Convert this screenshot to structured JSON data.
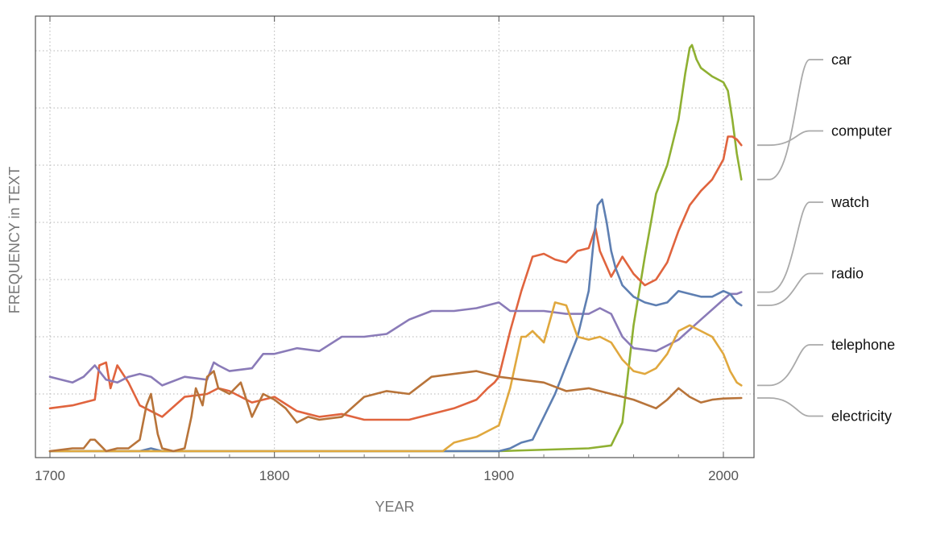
{
  "chart_data": {
    "type": "line",
    "xlabel": "YEAR",
    "ylabel": "FREQUENCY in TEXT",
    "xlim": [
      1700,
      2012
    ],
    "ylim": [
      0,
      7.2
    ],
    "x_ticks": [
      1700,
      1800,
      1900,
      2000
    ],
    "x_tick_labels": [
      "1700",
      "1800",
      "1900",
      "2000"
    ],
    "y_tick_labels_shown": false,
    "grid": true,
    "legend_placement": "right",
    "series": [
      {
        "name": "car",
        "color": "#8fb032",
        "x": [
          1700,
          1750,
          1800,
          1850,
          1900,
          1940,
          1950,
          1955,
          1960,
          1965,
          1970,
          1975,
          1980,
          1983,
          1985,
          1986,
          1988,
          1990,
          1995,
          2000,
          2002,
          2004,
          2006,
          2008
        ],
        "y": [
          0.0,
          0.0,
          0.0,
          0.0,
          0.0,
          0.05,
          0.1,
          0.5,
          2.2,
          3.4,
          4.5,
          5.0,
          5.8,
          6.6,
          7.05,
          7.1,
          6.85,
          6.7,
          6.55,
          6.45,
          6.3,
          5.8,
          5.2,
          4.75
        ]
      },
      {
        "name": "computer",
        "color": "#e0643e",
        "x": [
          1700,
          1710,
          1720,
          1722,
          1725,
          1727,
          1730,
          1735,
          1740,
          1745,
          1750,
          1760,
          1770,
          1775,
          1780,
          1790,
          1800,
          1810,
          1820,
          1830,
          1840,
          1850,
          1860,
          1870,
          1880,
          1890,
          1895,
          1898,
          1900,
          1905,
          1910,
          1915,
          1920,
          1925,
          1930,
          1935,
          1940,
          1943,
          1945,
          1950,
          1955,
          1960,
          1965,
          1970,
          1975,
          1980,
          1985,
          1990,
          1995,
          2000,
          2002,
          2004,
          2006,
          2008
        ],
        "y": [
          0.75,
          0.8,
          0.9,
          1.5,
          1.55,
          1.1,
          1.5,
          1.2,
          0.8,
          0.7,
          0.6,
          0.95,
          1.0,
          1.1,
          1.05,
          0.85,
          0.95,
          0.7,
          0.6,
          0.65,
          0.55,
          0.55,
          0.55,
          0.65,
          0.75,
          0.9,
          1.1,
          1.2,
          1.3,
          2.1,
          2.8,
          3.4,
          3.45,
          3.35,
          3.3,
          3.5,
          3.55,
          3.9,
          3.5,
          3.05,
          3.4,
          3.1,
          2.9,
          3.0,
          3.3,
          3.85,
          4.3,
          4.55,
          4.75,
          5.1,
          5.5,
          5.5,
          5.45,
          5.35
        ]
      },
      {
        "name": "watch",
        "color": "#8a7bb8",
        "x": [
          1700,
          1705,
          1710,
          1715,
          1720,
          1725,
          1730,
          1735,
          1740,
          1745,
          1750,
          1760,
          1770,
          1773,
          1775,
          1780,
          1790,
          1795,
          1800,
          1810,
          1820,
          1830,
          1840,
          1850,
          1860,
          1870,
          1880,
          1890,
          1900,
          1905,
          1910,
          1920,
          1930,
          1940,
          1945,
          1950,
          1955,
          1960,
          1970,
          1980,
          1990,
          2000,
          2003,
          2006,
          2008
        ],
        "y": [
          1.3,
          1.25,
          1.2,
          1.3,
          1.5,
          1.25,
          1.2,
          1.3,
          1.35,
          1.3,
          1.15,
          1.3,
          1.25,
          1.55,
          1.5,
          1.4,
          1.45,
          1.7,
          1.7,
          1.8,
          1.75,
          2.0,
          2.0,
          2.05,
          2.3,
          2.45,
          2.45,
          2.5,
          2.6,
          2.45,
          2.45,
          2.45,
          2.4,
          2.4,
          2.5,
          2.4,
          2.0,
          1.8,
          1.75,
          1.95,
          2.3,
          2.65,
          2.75,
          2.75,
          2.78
        ]
      },
      {
        "name": "radio",
        "color": "#5e7fb2",
        "x": [
          1700,
          1740,
          1745,
          1750,
          1800,
          1850,
          1900,
          1905,
          1910,
          1915,
          1920,
          1925,
          1930,
          1935,
          1940,
          1942,
          1944,
          1946,
          1948,
          1950,
          1952,
          1955,
          1960,
          1965,
          1970,
          1975,
          1980,
          1985,
          1990,
          1995,
          2000,
          2003,
          2006,
          2008
        ],
        "y": [
          0.0,
          0.0,
          0.05,
          0.0,
          0.0,
          0.0,
          0.0,
          0.05,
          0.15,
          0.2,
          0.6,
          1.0,
          1.5,
          2.0,
          2.8,
          3.6,
          4.3,
          4.4,
          4.0,
          3.5,
          3.2,
          2.9,
          2.7,
          2.6,
          2.55,
          2.6,
          2.8,
          2.75,
          2.7,
          2.7,
          2.8,
          2.75,
          2.6,
          2.55
        ]
      },
      {
        "name": "telephone",
        "color": "#e0a83e",
        "x": [
          1700,
          1850,
          1875,
          1880,
          1885,
          1890,
          1895,
          1900,
          1905,
          1910,
          1912,
          1915,
          1920,
          1925,
          1930,
          1935,
          1940,
          1945,
          1950,
          1955,
          1960,
          1965,
          1970,
          1975,
          1980,
          1985,
          1990,
          1995,
          2000,
          2003,
          2006,
          2008
        ],
        "y": [
          0.0,
          0.0,
          0.0,
          0.15,
          0.2,
          0.25,
          0.35,
          0.45,
          1.1,
          2.0,
          2.0,
          2.1,
          1.9,
          2.6,
          2.55,
          2.0,
          1.95,
          2.0,
          1.9,
          1.6,
          1.4,
          1.35,
          1.45,
          1.7,
          2.1,
          2.2,
          2.1,
          2.0,
          1.7,
          1.4,
          1.2,
          1.15
        ]
      },
      {
        "name": "electricity",
        "color": "#b8743a",
        "x": [
          1700,
          1710,
          1715,
          1718,
          1720,
          1725,
          1730,
          1735,
          1740,
          1743,
          1745,
          1748,
          1750,
          1755,
          1760,
          1763,
          1765,
          1768,
          1770,
          1773,
          1775,
          1780,
          1785,
          1790,
          1795,
          1800,
          1805,
          1810,
          1815,
          1820,
          1830,
          1840,
          1850,
          1860,
          1870,
          1880,
          1890,
          1895,
          1900,
          1910,
          1920,
          1930,
          1940,
          1950,
          1960,
          1970,
          1975,
          1980,
          1985,
          1990,
          1995,
          2000,
          2008
        ],
        "y": [
          0.0,
          0.05,
          0.05,
          0.2,
          0.2,
          0.0,
          0.05,
          0.05,
          0.2,
          0.8,
          1.0,
          0.3,
          0.05,
          0.0,
          0.05,
          0.6,
          1.1,
          0.8,
          1.3,
          1.4,
          1.1,
          1.0,
          1.2,
          0.6,
          1.0,
          0.9,
          0.75,
          0.5,
          0.6,
          0.55,
          0.6,
          0.95,
          1.05,
          1.0,
          1.3,
          1.35,
          1.4,
          1.35,
          1.3,
          1.25,
          1.2,
          1.05,
          1.1,
          1.0,
          0.9,
          0.75,
          0.9,
          1.1,
          0.95,
          0.85,
          0.9,
          0.92,
          0.93
        ]
      }
    ]
  }
}
